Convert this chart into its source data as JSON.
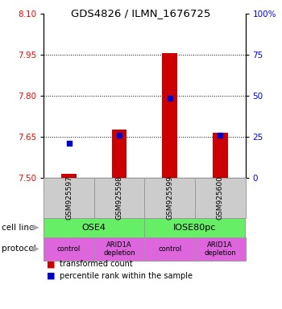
{
  "title": "GDS4826 / ILMN_1676725",
  "samples": [
    "GSM925597",
    "GSM925598",
    "GSM925599",
    "GSM925600"
  ],
  "bar_values": [
    7.515,
    7.675,
    7.955,
    7.665
  ],
  "bar_base": 7.5,
  "blue_dot_values": [
    7.625,
    7.655,
    7.79,
    7.655
  ],
  "ylim": [
    7.5,
    8.1
  ],
  "yticks_left": [
    7.5,
    7.65,
    7.8,
    7.95,
    8.1
  ],
  "yticks_right": [
    0,
    25,
    50,
    75,
    100
  ],
  "bar_color": "#cc0000",
  "dot_color": "#0000cc",
  "cell_line_labels": [
    "OSE4",
    "IOSE80pc"
  ],
  "cell_line_color": "#66ee66",
  "protocol_labels": [
    "control",
    "ARID1A\ndepletion",
    "control",
    "ARID1A\ndepletion"
  ],
  "protocol_color": "#dd66dd",
  "sample_box_color": "#cccccc",
  "legend_red_label": "transformed count",
  "legend_blue_label": "percentile rank within the sample",
  "left_label_color": "#888888",
  "arrow_color": "#aaaaaa"
}
